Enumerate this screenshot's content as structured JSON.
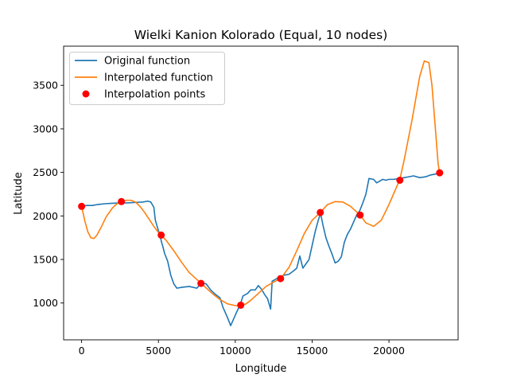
{
  "chart_data": {
    "type": "line",
    "title": "Wielki Kanion Kolorado (Equal, 10 nodes)",
    "xlabel": "Longitude",
    "ylabel": "Latitude",
    "xlim": [
      -1170,
      24500
    ],
    "ylim": [
      577,
      3950
    ],
    "xticks": [
      0,
      5000,
      10000,
      15000,
      20000
    ],
    "yticks": [
      1000,
      1500,
      2000,
      2500,
      3000,
      3500
    ],
    "grid": false,
    "legend_position": "top-left",
    "series": [
      {
        "name": "Original function",
        "kind": "line",
        "color": "#1f77b4",
        "x": [
          0,
          300,
          700,
          1000,
          1500,
          2000,
          2500,
          3000,
          3500,
          4000,
          4300,
          4500,
          4700,
          4800,
          5000,
          5100,
          5200,
          5300,
          5400,
          5600,
          5800,
          6000,
          6200,
          6500,
          7000,
          7500,
          7800,
          8100,
          8400,
          8700,
          9000,
          9200,
          9500,
          9700,
          9900,
          10100,
          10300,
          10500,
          10800,
          11000,
          11300,
          11500,
          11700,
          11900,
          12100,
          12300,
          12400,
          12600,
          12900,
          13200,
          13500,
          13800,
          14000,
          14200,
          14400,
          14600,
          14800,
          15000,
          15200,
          15400,
          15550,
          15700,
          15900,
          16100,
          16300,
          16500,
          16700,
          16900,
          17100,
          17300,
          17500,
          17700,
          17900,
          18100,
          18300,
          18500,
          18700,
          19000,
          19200,
          19400,
          19600,
          19800,
          20000,
          20300,
          20700,
          21000,
          21300,
          21600,
          22000,
          22400,
          22700,
          23000,
          23300
        ],
        "y": [
          2110,
          2120,
          2120,
          2130,
          2140,
          2145,
          2150,
          2150,
          2155,
          2160,
          2170,
          2160,
          2100,
          1950,
          1830,
          1780,
          1700,
          1640,
          1570,
          1480,
          1320,
          1220,
          1170,
          1180,
          1190,
          1170,
          1230,
          1220,
          1150,
          1100,
          1060,
          950,
          830,
          740,
          820,
          900,
          970,
          1080,
          1110,
          1150,
          1150,
          1200,
          1160,
          1100,
          1050,
          930,
          1250,
          1270,
          1300,
          1320,
          1330,
          1370,
          1400,
          1540,
          1400,
          1450,
          1500,
          1660,
          1820,
          1950,
          2030,
          1900,
          1750,
          1650,
          1560,
          1460,
          1480,
          1530,
          1700,
          1790,
          1850,
          1930,
          2010,
          2060,
          2150,
          2250,
          2430,
          2420,
          2380,
          2400,
          2420,
          2410,
          2420,
          2420,
          2430,
          2440,
          2450,
          2460,
          2440,
          2450,
          2470,
          2480,
          2490
        ]
      },
      {
        "name": "Interpolated function",
        "kind": "line",
        "color": "#ff7f0e",
        "x": [
          0,
          200,
          400,
          600,
          800,
          1000,
          1300,
          1600,
          2000,
          2300,
          2589,
          2900,
          3200,
          3500,
          3800,
          4100,
          4400,
          4700,
          5000,
          5178,
          5500,
          6000,
          6500,
          7000,
          7500,
          7767,
          8000,
          8500,
          9000,
          9500,
          10000,
          10356,
          10700,
          11000,
          11500,
          12000,
          12500,
          12945,
          13500,
          14000,
          14500,
          15000,
          15533,
          16000,
          16500,
          17000,
          17500,
          18122,
          18500,
          19000,
          19500,
          20000,
          20711,
          21000,
          21500,
          22000,
          22300,
          22600,
          22800,
          23000,
          23200,
          23300
        ],
        "y": [
          2110,
          1950,
          1820,
          1750,
          1740,
          1780,
          1880,
          1990,
          2090,
          2140,
          2160,
          2180,
          2180,
          2160,
          2110,
          2040,
          1960,
          1880,
          1810,
          1780,
          1720,
          1600,
          1470,
          1350,
          1270,
          1230,
          1190,
          1110,
          1040,
          990,
          970,
          970,
          990,
          1030,
          1110,
          1190,
          1240,
          1280,
          1410,
          1600,
          1800,
          1950,
          2040,
          2130,
          2165,
          2160,
          2110,
          2010,
          1920,
          1880,
          1950,
          2130,
          2420,
          2650,
          3100,
          3600,
          3780,
          3760,
          3500,
          3050,
          2600,
          2490
        ]
      },
      {
        "name": "Interpolation points",
        "kind": "scatter",
        "color": "#ff0000",
        "x": [
          0,
          2589,
          5178,
          7767,
          10356,
          12945,
          15533,
          18122,
          20711,
          23300
        ],
        "y": [
          2110,
          2165,
          1780,
          1225,
          975,
          1280,
          2040,
          2010,
          2410,
          2495
        ]
      }
    ]
  }
}
